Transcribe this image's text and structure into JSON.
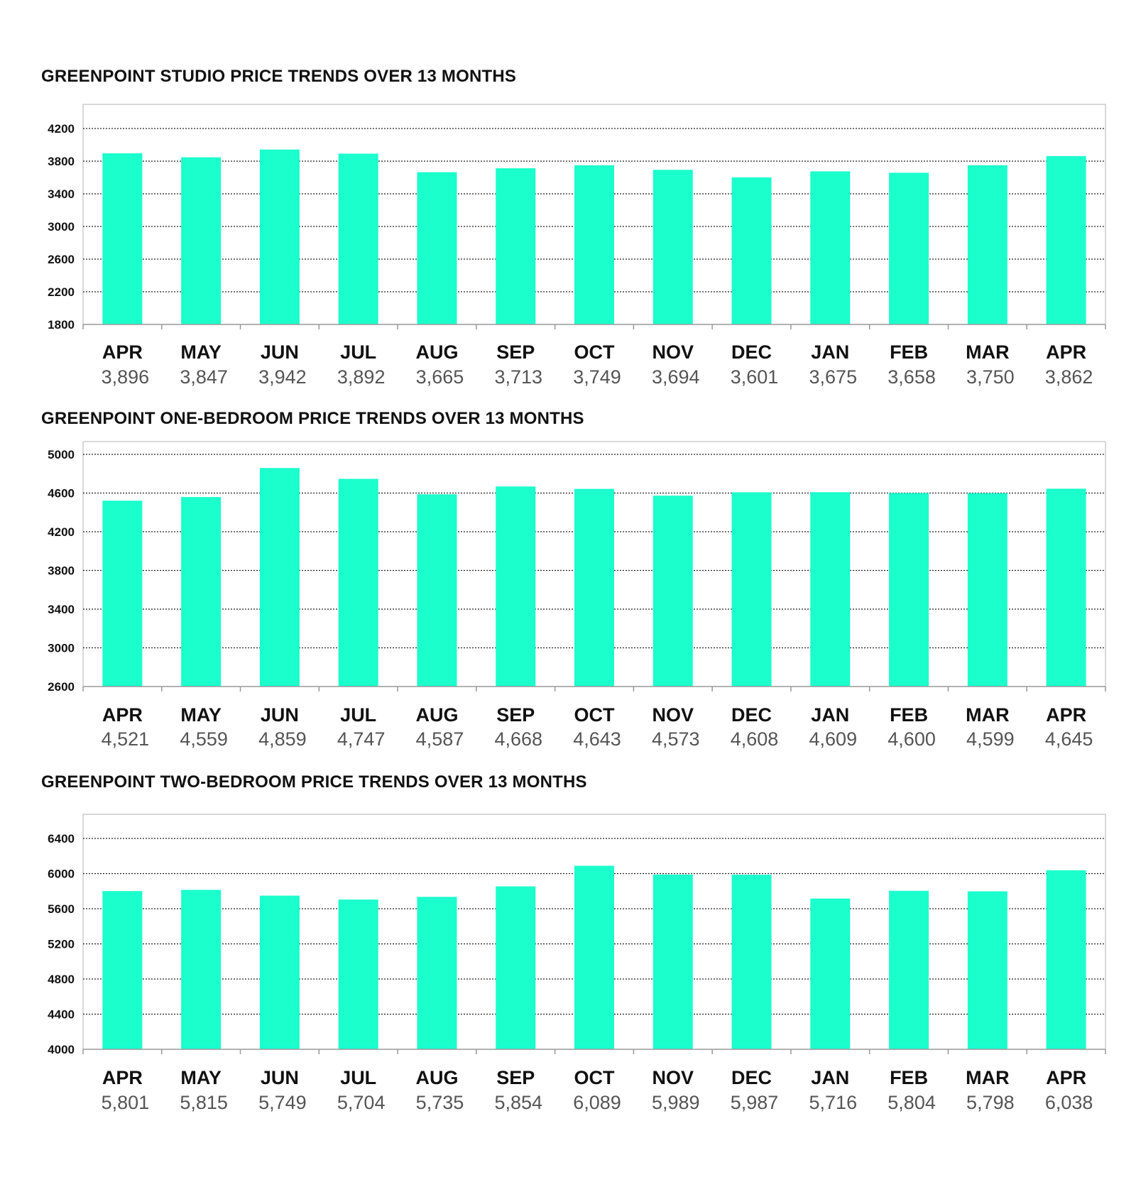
{
  "colors": {
    "bar": "#1bffcc",
    "grid": "#222222",
    "frame": "#cccccc",
    "axis": "#999999"
  },
  "chart_data": [
    {
      "type": "bar",
      "title": "GREENPOINT STUDIO PRICE TRENDS OVER 13 MONTHS",
      "categories": [
        "APR",
        "MAY",
        "JUN",
        "JUL",
        "AUG",
        "SEP",
        "OCT",
        "NOV",
        "DEC",
        "JAN",
        "FEB",
        "MAR",
        "APR"
      ],
      "values": [
        3896,
        3847,
        3942,
        3892,
        3665,
        3713,
        3749,
        3694,
        3601,
        3675,
        3658,
        3750,
        3862
      ],
      "value_labels": [
        "3,896",
        "3,847",
        "3,942",
        "3,892",
        "3,665",
        "3,713",
        "3,749",
        "3,694",
        "3,601",
        "3,675",
        "3,658",
        "3,750",
        "3,862"
      ],
      "yticks": [
        1800,
        2200,
        2600,
        3000,
        3400,
        3800,
        4200
      ],
      "ylim": [
        1800,
        4450
      ],
      "grid": true,
      "legend": "none"
    },
    {
      "type": "bar",
      "title": "GREENPOINT ONE-BEDROOM PRICE TRENDS OVER 13 MONTHS",
      "categories": [
        "APR",
        "MAY",
        "JUN",
        "JUL",
        "AUG",
        "SEP",
        "OCT",
        "NOV",
        "DEC",
        "JAN",
        "FEB",
        "MAR",
        "APR"
      ],
      "values": [
        4521,
        4559,
        4859,
        4747,
        4587,
        4668,
        4643,
        4573,
        4608,
        4609,
        4600,
        4599,
        4645
      ],
      "value_labels": [
        "4,521",
        "4,559",
        "4,859",
        "4,747",
        "4,587",
        "4,668",
        "4,643",
        "4,573",
        "4,608",
        "4,609",
        "4,600",
        "4,599",
        "4,645"
      ],
      "yticks": [
        2600,
        3000,
        3400,
        3800,
        4200,
        4600,
        5000
      ],
      "ylim": [
        2600,
        5000
      ],
      "grid": true,
      "legend": "none"
    },
    {
      "type": "bar",
      "title": "GREENPOINT TWO-BEDROOM PRICE TRENDS OVER 13 MONTHS",
      "categories": [
        "APR",
        "MAY",
        "JUN",
        "JUL",
        "AUG",
        "SEP",
        "OCT",
        "NOV",
        "DEC",
        "JAN",
        "FEB",
        "MAR",
        "APR"
      ],
      "values": [
        5801,
        5815,
        5749,
        5704,
        5735,
        5854,
        6089,
        5989,
        5987,
        5716,
        5804,
        5798,
        6038
      ],
      "value_labels": [
        "5,801",
        "5,815",
        "5,749",
        "5,704",
        "5,735",
        "5,854",
        "6,089",
        "5,989",
        "5,987",
        "5,716",
        "5,804",
        "5,798",
        "6,038"
      ],
      "yticks": [
        4000,
        4400,
        4800,
        5200,
        5600,
        6000,
        6400
      ],
      "ylim": [
        4000,
        6600
      ],
      "grid": true,
      "legend": "none"
    }
  ]
}
